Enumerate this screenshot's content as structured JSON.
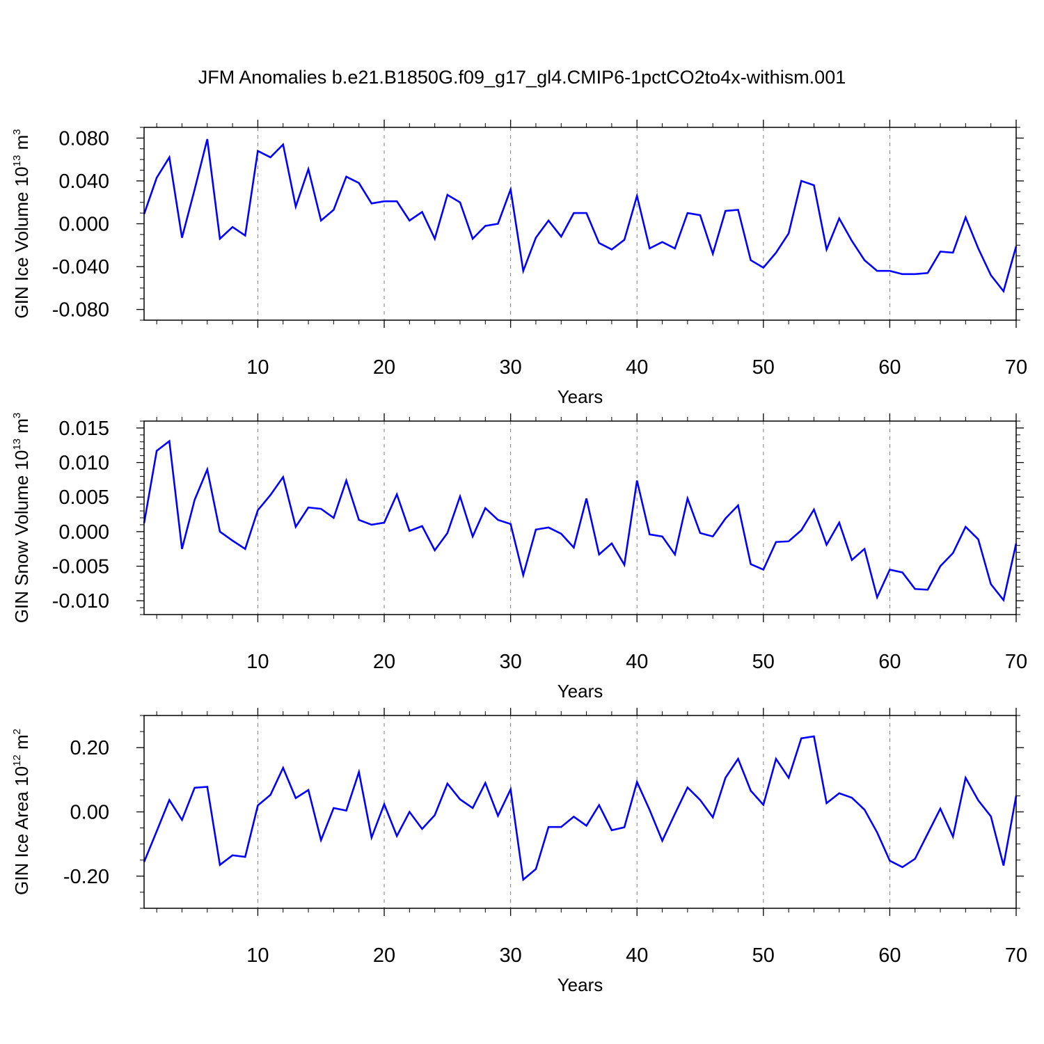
{
  "figure": {
    "title": "JFM Anomalies b.e21.B1850G.f09_g17_gl4.CMIP6-1pctCO2to4x-withism.001"
  },
  "colors": {
    "line": "#0000ff",
    "frame": "#000000",
    "grid": "#7f7f7f",
    "background": "#ffffff"
  },
  "chart_data": [
    {
      "type": "line",
      "xlabel": "Years",
      "ylabel": {
        "base": "GIN Ice Volume 10",
        "exp1": "13",
        "unit": " m",
        "exp2": "3"
      },
      "xlim": [
        1,
        70
      ],
      "ylim": [
        -0.09,
        0.09
      ],
      "xticks": [
        10,
        20,
        30,
        40,
        50,
        60,
        70
      ],
      "xtick_labels": [
        "10",
        "20",
        "30",
        "40",
        "50",
        "60",
        "70"
      ],
      "yticks": [
        -0.08,
        -0.04,
        0.0,
        0.04,
        0.08
      ],
      "ytick_labels": [
        "-0.080",
        "-0.040",
        "0.000",
        "0.040",
        "0.080"
      ],
      "x_minor_step": 2,
      "y_minor_step": 0.01,
      "grid": "vertical dashed at major x ticks",
      "series": [
        {
          "x": [
            1,
            2,
            3,
            4,
            5,
            6,
            7,
            8,
            9,
            10,
            11,
            12,
            13,
            14,
            15,
            16,
            17,
            18,
            19,
            20,
            21,
            22,
            23,
            24,
            25,
            26,
            27,
            28,
            29,
            30,
            31,
            32,
            33,
            34,
            35,
            36,
            37,
            38,
            39,
            40,
            41,
            42,
            43,
            44,
            45,
            46,
            47,
            48,
            49,
            50,
            51,
            52,
            53,
            54,
            55,
            56,
            57,
            58,
            59,
            60,
            61,
            62,
            63,
            64,
            65,
            66,
            67,
            68,
            69,
            70
          ],
          "values": [
            0.009,
            0.043,
            0.062,
            -0.013,
            0.032,
            0.079,
            -0.014,
            -0.003,
            -0.011,
            0.068,
            0.062,
            0.074,
            0.016,
            0.051,
            0.003,
            0.013,
            0.044,
            0.038,
            0.019,
            0.021,
            0.021,
            0.003,
            0.011,
            -0.014,
            0.027,
            0.02,
            -0.014,
            -0.002,
            0.0,
            0.032,
            -0.044,
            -0.013,
            0.003,
            -0.012,
            0.01,
            0.01,
            -0.018,
            -0.024,
            -0.015,
            0.026,
            -0.023,
            -0.017,
            -0.023,
            0.01,
            0.008,
            -0.028,
            0.012,
            0.013,
            -0.034,
            -0.041,
            -0.027,
            -0.009,
            0.04,
            0.036,
            -0.024,
            0.005,
            -0.016,
            -0.034,
            -0.044,
            -0.044,
            -0.047,
            -0.047,
            -0.046,
            -0.026,
            -0.027,
            0.006,
            -0.023,
            -0.048,
            -0.063,
            -0.021
          ]
        }
      ]
    },
    {
      "type": "line",
      "xlabel": "Years",
      "ylabel": {
        "base": "GIN Snow Volume 10",
        "exp1": "13",
        "unit": " m",
        "exp2": "3"
      },
      "xlim": [
        1,
        70
      ],
      "ylim": [
        -0.012,
        0.016
      ],
      "xticks": [
        10,
        20,
        30,
        40,
        50,
        60,
        70
      ],
      "xtick_labels": [
        "10",
        "20",
        "30",
        "40",
        "50",
        "60",
        "70"
      ],
      "yticks": [
        -0.01,
        -0.005,
        0.0,
        0.005,
        0.01,
        0.015
      ],
      "ytick_labels": [
        "-0.010",
        "-0.005",
        "0.000",
        "0.005",
        "0.010",
        "0.015"
      ],
      "x_minor_step": 2,
      "y_minor_step": 0.001,
      "grid": "vertical dashed at major x ticks",
      "series": [
        {
          "x": [
            1,
            2,
            3,
            4,
            5,
            6,
            7,
            8,
            9,
            10,
            11,
            12,
            13,
            14,
            15,
            16,
            17,
            18,
            19,
            20,
            21,
            22,
            23,
            24,
            25,
            26,
            27,
            28,
            29,
            30,
            31,
            32,
            33,
            34,
            35,
            36,
            37,
            38,
            39,
            40,
            41,
            42,
            43,
            44,
            45,
            46,
            47,
            48,
            49,
            50,
            51,
            52,
            53,
            54,
            55,
            56,
            57,
            58,
            59,
            60,
            61,
            62,
            63,
            64,
            65,
            66,
            67,
            68,
            69,
            70
          ],
          "values": [
            0.0012,
            0.0117,
            0.0131,
            -0.0025,
            0.0046,
            0.009,
            0.0,
            -0.0013,
            -0.0025,
            0.0031,
            0.0053,
            0.0079,
            0.0007,
            0.0035,
            0.0033,
            0.002,
            0.0074,
            0.0017,
            0.001,
            0.0013,
            0.0054,
            0.0001,
            0.0008,
            -0.0027,
            -0.0002,
            0.0051,
            -0.0007,
            0.0034,
            0.0017,
            0.0011,
            -0.0063,
            0.0003,
            0.0006,
            -0.0003,
            -0.0023,
            0.0048,
            -0.0033,
            -0.0017,
            -0.0048,
            0.0074,
            -0.0004,
            -0.0007,
            -0.0033,
            0.0048,
            -0.0002,
            -0.0007,
            0.0019,
            0.0038,
            -0.0047,
            -0.0055,
            -0.0015,
            -0.0014,
            0.0002,
            0.0032,
            -0.0019,
            0.0013,
            -0.0041,
            -0.0025,
            -0.0095,
            -0.0055,
            -0.0059,
            -0.0083,
            -0.0084,
            -0.005,
            -0.0031,
            0.0007,
            -0.0011,
            -0.0076,
            -0.0099,
            -0.0017
          ]
        }
      ]
    },
    {
      "type": "line",
      "xlabel": "Years",
      "ylabel": {
        "base": "GIN Ice Area 10",
        "exp1": "12",
        "unit": " m",
        "exp2": "2"
      },
      "xlim": [
        1,
        70
      ],
      "ylim": [
        -0.3,
        0.3
      ],
      "xticks": [
        10,
        20,
        30,
        40,
        50,
        60,
        70
      ],
      "xtick_labels": [
        "10",
        "20",
        "30",
        "40",
        "50",
        "60",
        "70"
      ],
      "yticks": [
        -0.2,
        0.0,
        0.2
      ],
      "ytick_labels": [
        "-0.20",
        "0.00",
        "0.20"
      ],
      "x_minor_step": 2,
      "y_minor_step": 0.05,
      "grid": "vertical dashed at major x ticks",
      "series": [
        {
          "x": [
            1,
            2,
            3,
            4,
            5,
            6,
            7,
            8,
            9,
            10,
            11,
            12,
            13,
            14,
            15,
            16,
            17,
            18,
            19,
            20,
            21,
            22,
            23,
            24,
            25,
            26,
            27,
            28,
            29,
            30,
            31,
            32,
            33,
            34,
            35,
            36,
            37,
            38,
            39,
            40,
            41,
            42,
            43,
            44,
            45,
            46,
            47,
            48,
            49,
            50,
            51,
            52,
            53,
            54,
            55,
            56,
            57,
            58,
            59,
            60,
            61,
            62,
            63,
            64,
            65,
            66,
            67,
            68,
            69,
            70
          ],
          "values": [
            -0.156,
            -0.06,
            0.037,
            -0.025,
            0.075,
            0.078,
            -0.165,
            -0.135,
            -0.14,
            0.02,
            0.053,
            0.137,
            0.043,
            0.068,
            -0.088,
            0.012,
            0.004,
            0.124,
            -0.08,
            0.024,
            -0.075,
            0.0,
            -0.053,
            -0.01,
            0.088,
            0.039,
            0.012,
            0.09,
            -0.012,
            0.07,
            -0.211,
            -0.178,
            -0.047,
            -0.047,
            -0.015,
            -0.043,
            0.021,
            -0.057,
            -0.048,
            0.093,
            0.006,
            -0.09,
            -0.006,
            0.076,
            0.037,
            -0.017,
            0.106,
            0.165,
            0.066,
            0.022,
            0.165,
            0.106,
            0.229,
            0.235,
            0.027,
            0.058,
            0.044,
            0.007,
            -0.064,
            -0.152,
            -0.172,
            -0.146,
            -0.068,
            0.01,
            -0.077,
            0.106,
            0.036,
            -0.014,
            -0.167,
            0.05
          ]
        }
      ]
    }
  ]
}
